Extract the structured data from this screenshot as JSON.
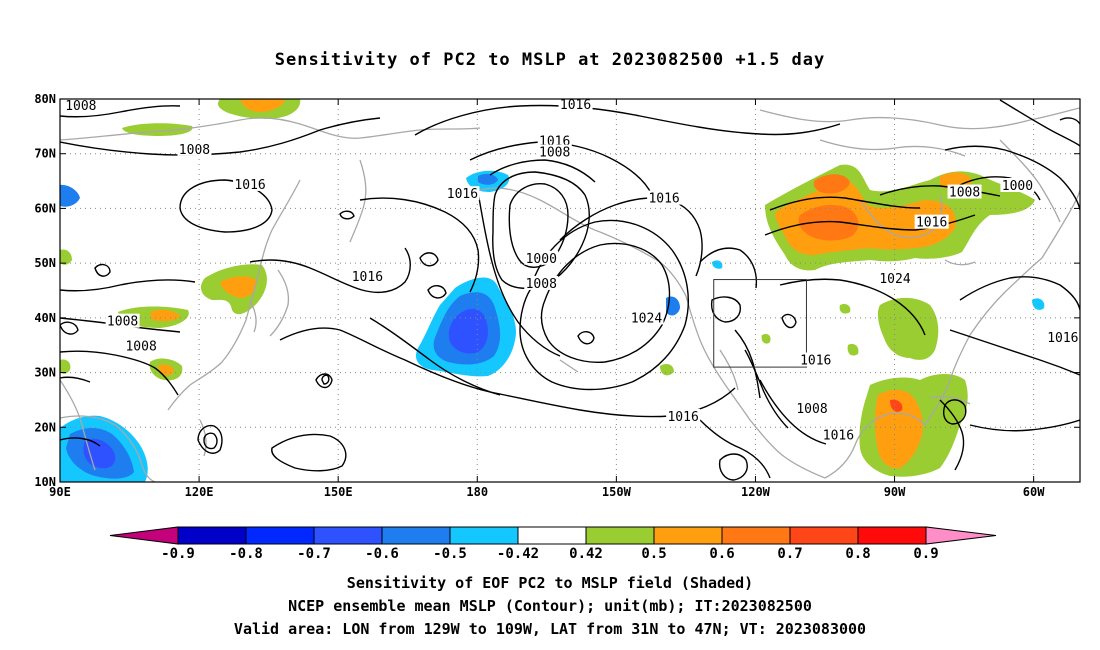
{
  "title": "Sensitivity of PC2 to MSLP at 2023082500 +1.5 day",
  "map": {
    "lon_range": [
      90,
      310
    ],
    "lat_range": [
      10,
      80
    ],
    "lat_ticks": [
      {
        "value": 80,
        "label": "80N"
      },
      {
        "value": 70,
        "label": "70N"
      },
      {
        "value": 60,
        "label": "60N"
      },
      {
        "value": 50,
        "label": "50N"
      },
      {
        "value": 40,
        "label": "40N"
      },
      {
        "value": 30,
        "label": "30N"
      },
      {
        "value": 20,
        "label": "20N"
      },
      {
        "value": 10,
        "label": "10N"
      }
    ],
    "lon_ticks": [
      {
        "value": 90,
        "label": "90E"
      },
      {
        "value": 120,
        "label": "120E"
      },
      {
        "value": 150,
        "label": "150E"
      },
      {
        "value": 180,
        "label": "180"
      },
      {
        "value": 210,
        "label": "150W"
      },
      {
        "value": 240,
        "label": "120W"
      },
      {
        "value": 270,
        "label": "90W"
      },
      {
        "value": 300,
        "label": "60W"
      }
    ],
    "grid": "dotted",
    "valid_box": {
      "lon": [
        231,
        251
      ],
      "lat": [
        31,
        47
      ]
    },
    "contour_labels": [
      {
        "text": "1008",
        "lon": 94.5,
        "lat": 78.7
      },
      {
        "text": "1008",
        "lon": 119,
        "lat": 70.7
      },
      {
        "text": "1016",
        "lon": 131,
        "lat": 64.3
      },
      {
        "text": "1016",
        "lon": 176.8,
        "lat": 62.6
      },
      {
        "text": "1016",
        "lon": 156.3,
        "lat": 47.5
      },
      {
        "text": "1008",
        "lon": 103.5,
        "lat": 39.3
      },
      {
        "text": "1008",
        "lon": 107.5,
        "lat": 34.8
      },
      {
        "text": "1016",
        "lon": 201.2,
        "lat": 78.9
      },
      {
        "text": "1016",
        "lon": 196.7,
        "lat": 72.2
      },
      {
        "text": "1008",
        "lon": 196.7,
        "lat": 70.2
      },
      {
        "text": "1016",
        "lon": 220.3,
        "lat": 61.8
      },
      {
        "text": "1000",
        "lon": 193.8,
        "lat": 50.8
      },
      {
        "text": "1008",
        "lon": 193.8,
        "lat": 46.2
      },
      {
        "text": "1024",
        "lon": 216.5,
        "lat": 39.9
      },
      {
        "text": "1016",
        "lon": 224.4,
        "lat": 21.9
      },
      {
        "text": "1016",
        "lon": 253,
        "lat": 32.2
      },
      {
        "text": "1008",
        "lon": 252.2,
        "lat": 23.3
      },
      {
        "text": "1016",
        "lon": 257.9,
        "lat": 18.5
      },
      {
        "text": "1024",
        "lon": 270.1,
        "lat": 47.1
      },
      {
        "text": "1016",
        "lon": 278,
        "lat": 57.4
      },
      {
        "text": "1008",
        "lon": 285.1,
        "lat": 62.9
      },
      {
        "text": "1000",
        "lon": 296.5,
        "lat": 64.1
      },
      {
        "text": "1016",
        "lon": 306.3,
        "lat": 36.3
      }
    ]
  },
  "colors": {
    "c_n09": "#c4007a",
    "c_n08": "#0000c8",
    "c_n07": "#0028ff",
    "c_n06": "#2e52ff",
    "c_n05": "#1e7ef0",
    "c_n042": "#14c8ff",
    "c_zero": "#ffffff",
    "c_042": "#9acd32",
    "c_05": "#ff9f0f",
    "c_06": "#ff7814",
    "c_07": "#ff4619",
    "c_08": "#ff0a0a",
    "c_09": "#ff8ec8",
    "coast": "#a8a8a8",
    "contour": "#000000"
  },
  "colorbar": {
    "labels": [
      "-0.9",
      "-0.8",
      "-0.7",
      "-0.6",
      "-0.5",
      "-0.42",
      "0.42",
      "0.5",
      "0.6",
      "0.7",
      "0.8",
      "0.9"
    ]
  },
  "captions": [
    "Sensitivity of EOF PC2 to MSLP field (Shaded)",
    "NCEP ensemble mean MSLP (Contour); unit(mb); IT:2023082500",
    "Valid area: LON from 129W to 109W, LAT from 31N to 47N; VT: 2023083000"
  ]
}
